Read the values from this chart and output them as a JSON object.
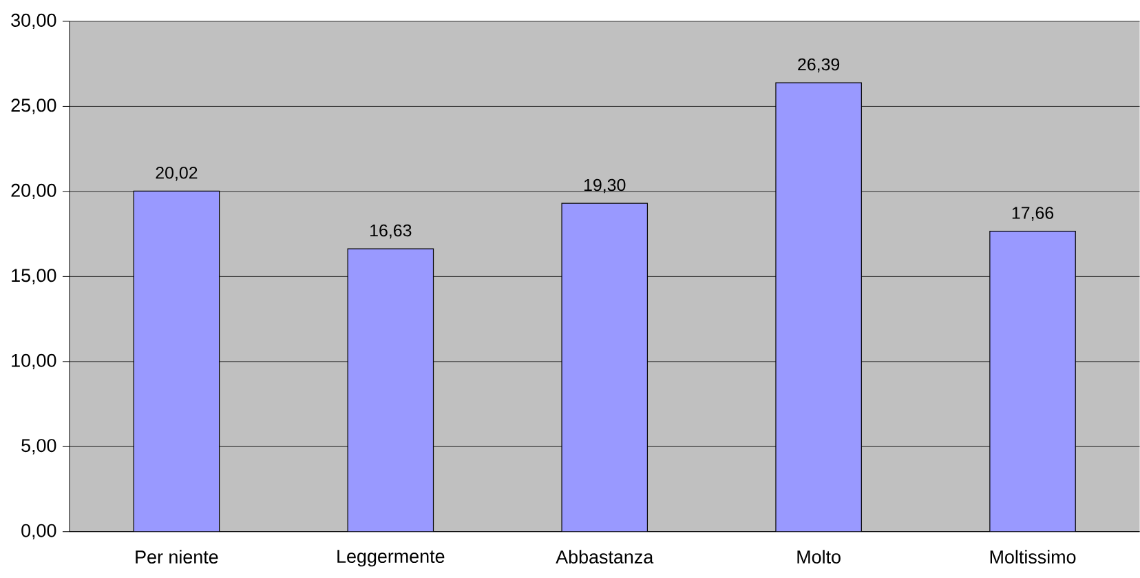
{
  "chart_data": {
    "type": "bar",
    "categories": [
      "Per niente",
      "Leggermente",
      "Abbastanza",
      "Molto",
      "Moltissimo"
    ],
    "values": [
      20.02,
      16.63,
      19.3,
      26.39,
      17.66
    ],
    "value_labels": [
      "20,02",
      "16,63",
      "19,30",
      "26,39",
      "17,66"
    ],
    "color": "#9999ff",
    "ylim": [
      0,
      30
    ],
    "yticks": [
      {
        "value": 0,
        "label": "0,00"
      },
      {
        "value": 5,
        "label": "5,00"
      },
      {
        "value": 10,
        "label": "10,00"
      },
      {
        "value": 15,
        "label": "15,00"
      },
      {
        "value": 20,
        "label": "20,00"
      },
      {
        "value": 25,
        "label": "25,00"
      },
      {
        "value": 30,
        "label": "30,00"
      }
    ],
    "grid": "y"
  }
}
